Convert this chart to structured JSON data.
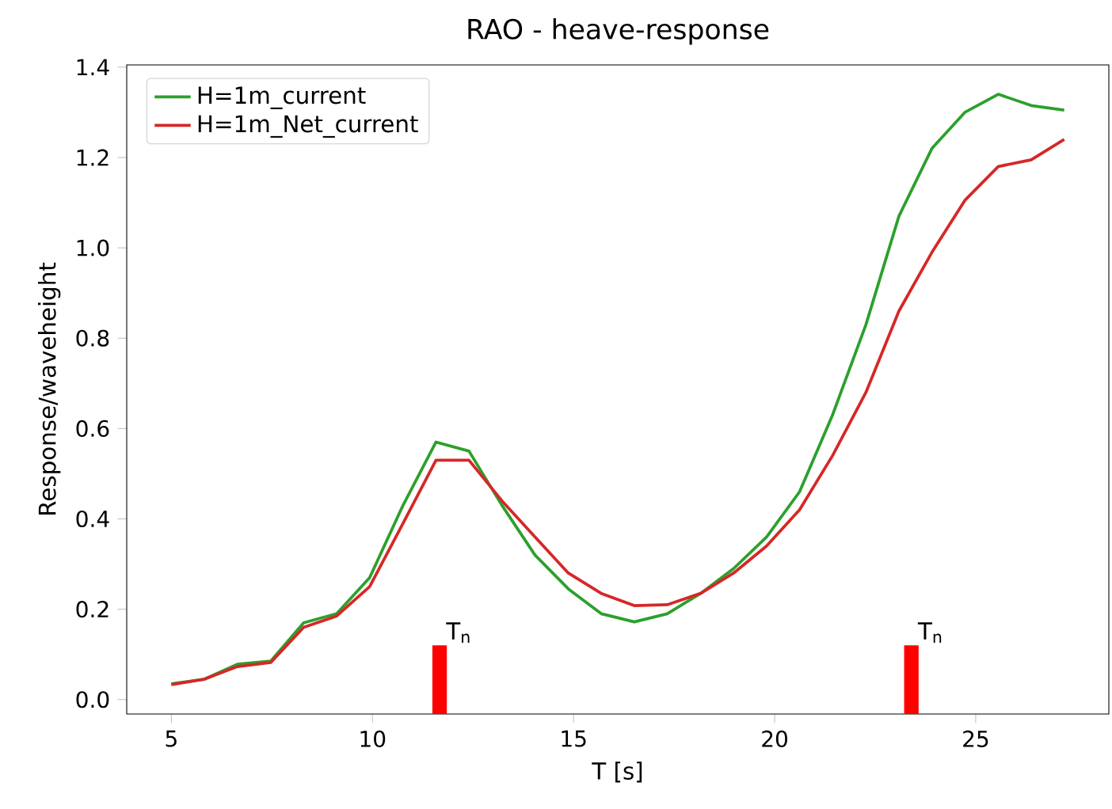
{
  "chart_data": {
    "type": "line",
    "title": "RAO - heave-response",
    "xlabel": "T [s]",
    "ylabel": "Response/waveheight",
    "xlim": [
      3.89,
      28.31
    ],
    "ylim": [
      -0.032,
      1.405
    ],
    "xticks": [
      5,
      10,
      15,
      20,
      25
    ],
    "yticks": [
      {
        "value": 0,
        "label": "0.0"
      },
      {
        "value": 0.2,
        "label": "0.2"
      },
      {
        "value": 0.4,
        "label": "0.4"
      },
      {
        "value": 0.6,
        "label": "0.6"
      },
      {
        "value": 0.8,
        "label": "0.8"
      },
      {
        "value": 1.0,
        "label": "1.0"
      },
      {
        "value": 1.2,
        "label": "1.2"
      },
      {
        "value": 1.4,
        "label": "1.4"
      }
    ],
    "x": [
      5.0,
      5.82,
      6.64,
      7.47,
      8.29,
      9.11,
      9.93,
      10.76,
      11.58,
      12.4,
      13.22,
      14.04,
      14.87,
      15.69,
      16.51,
      17.33,
      18.16,
      18.98,
      19.8,
      20.62,
      21.44,
      22.27,
      23.09,
      23.91,
      24.73,
      25.56,
      26.38,
      27.2
    ],
    "series": [
      {
        "name": "H=1m_current",
        "color": "#2ca02c",
        "values": [
          0.035,
          0.045,
          0.078,
          0.085,
          0.17,
          0.19,
          0.27,
          0.43,
          0.57,
          0.55,
          0.43,
          0.32,
          0.245,
          0.19,
          0.172,
          0.19,
          0.235,
          0.29,
          0.36,
          0.46,
          0.63,
          0.83,
          1.07,
          1.22,
          1.3,
          1.34,
          1.315,
          1.305
        ]
      },
      {
        "name": "H=1m_Net_current",
        "color": "#d62728",
        "values": [
          0.033,
          0.045,
          0.073,
          0.082,
          0.16,
          0.185,
          0.25,
          0.39,
          0.53,
          0.53,
          0.44,
          0.36,
          0.28,
          0.235,
          0.208,
          0.21,
          0.235,
          0.28,
          0.34,
          0.42,
          0.54,
          0.68,
          0.86,
          0.99,
          1.105,
          1.18,
          1.195,
          1.24
        ]
      },
      {
        "type": "bar",
        "color": "#ff0000",
        "x": [
          11.67,
          23.4
        ],
        "base": [
          -0.032,
          -0.032
        ],
        "values": [
          0.152,
          0.152
        ]
      }
    ],
    "annotations": [
      {
        "text": "T$_{n}$",
        "x": 11.67,
        "y": 0.12
      },
      {
        "text": "T$_{n}$",
        "x": 23.4,
        "y": 0.12
      }
    ],
    "legend": "top left",
    "grid": false
  }
}
